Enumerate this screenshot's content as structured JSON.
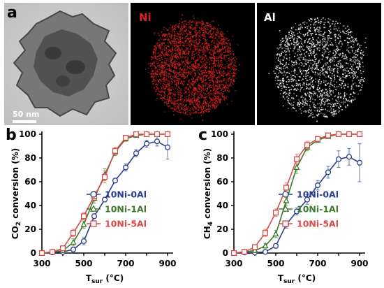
{
  "figure": {
    "panel_a_letter": "a",
    "panel_b_letter": "b",
    "panel_c_letter": "c",
    "scale_bar_label": "50 nm",
    "map_ni_label": "Ni",
    "map_al_label": "Al",
    "map_ni_color": "#d42121",
    "map_al_color": "#ffffff"
  },
  "chart_data": [
    {
      "type": "line",
      "panel": "b",
      "ylabel_main": "CO",
      "ylabel_sub": "2",
      "ylabel_rest": " conversion (%)",
      "xlabel_main": "T",
      "xlabel_sub": "sur",
      "xlabel_rest": " (°C)",
      "xlim": [
        300,
        900
      ],
      "ylim": [
        0,
        100
      ],
      "xticks": [
        "300",
        "500",
        "700",
        "900"
      ],
      "yticks": [
        "0",
        "20",
        "40",
        "60",
        "80",
        "100"
      ],
      "legend_position": "right",
      "series": [
        {
          "name": "10Ni-0Al",
          "color": "#2a3d8f",
          "marker": "circle",
          "x": [
            300,
            350,
            400,
            450,
            500,
            550,
            600,
            650,
            700,
            750,
            800,
            850,
            900
          ],
          "y": [
            0,
            0.5,
            1,
            3,
            10,
            31,
            45,
            61,
            72,
            84,
            92,
            94,
            89
          ],
          "err": [
            0,
            0,
            1,
            2,
            3,
            2,
            2,
            2,
            3,
            3,
            3,
            4,
            10
          ]
        },
        {
          "name": "10Ni-1Al",
          "color": "#3d7a2a",
          "marker": "triangle",
          "x": [
            300,
            350,
            400,
            450,
            500,
            550,
            600,
            650,
            700,
            750,
            800,
            850,
            900
          ],
          "y": [
            0,
            1,
            2,
            9,
            24,
            46,
            66,
            85,
            96,
            99,
            100,
            100,
            100
          ],
          "err": [
            0,
            0,
            1,
            3,
            3,
            4,
            5,
            3,
            2,
            1,
            0,
            0,
            0
          ]
        },
        {
          "name": "10Ni-5Al",
          "color": "#d94a4a",
          "marker": "square",
          "x": [
            300,
            350,
            400,
            450,
            500,
            550,
            600,
            650,
            700,
            750,
            800,
            850,
            900
          ],
          "y": [
            0,
            1,
            4,
            17,
            31,
            48,
            64,
            86,
            97,
            100,
            100,
            100,
            100
          ],
          "err": [
            0,
            0,
            2,
            3,
            3,
            4,
            5,
            3,
            2,
            1,
            0,
            0,
            0
          ]
        }
      ]
    },
    {
      "type": "line",
      "panel": "c",
      "ylabel_main": "CH",
      "ylabel_sub": "4",
      "ylabel_rest": " conversion (%)",
      "xlabel_main": "T",
      "xlabel_sub": "sur",
      "xlabel_rest": " (°C)",
      "xlim": [
        300,
        900
      ],
      "ylim": [
        0,
        100
      ],
      "xticks": [
        "300",
        "500",
        "700",
        "900"
      ],
      "yticks": [
        "0",
        "20",
        "40",
        "60",
        "80",
        "100"
      ],
      "legend_position": "right",
      "series": [
        {
          "name": "10Ni-0Al",
          "color": "#2a3d8f",
          "marker": "circle",
          "x": [
            300,
            350,
            400,
            450,
            500,
            550,
            600,
            650,
            700,
            750,
            800,
            850,
            900
          ],
          "y": [
            0,
            0.5,
            0.5,
            1,
            6,
            24,
            35,
            45,
            57,
            68,
            79,
            81,
            76
          ],
          "err": [
            0,
            0,
            0,
            1,
            2,
            3,
            3,
            4,
            4,
            5,
            7,
            7,
            16
          ]
        },
        {
          "name": "10Ni-1Al",
          "color": "#3d7a2a",
          "marker": "triangle",
          "x": [
            300,
            350,
            400,
            450,
            500,
            550,
            600,
            650,
            700,
            750,
            800,
            850,
            900
          ],
          "y": [
            0,
            1,
            2,
            6,
            16,
            44,
            72,
            89,
            95,
            98,
            100,
            100,
            100
          ],
          "err": [
            0,
            0,
            1,
            2,
            3,
            4,
            5,
            3,
            2,
            1,
            0,
            0,
            0
          ]
        },
        {
          "name": "10Ni-5Al",
          "color": "#d94a4a",
          "marker": "square",
          "x": [
            300,
            350,
            400,
            450,
            500,
            550,
            600,
            650,
            700,
            750,
            800,
            850,
            900
          ],
          "y": [
            0,
            1,
            5,
            17,
            34,
            55,
            79,
            91,
            96,
            99,
            100,
            100,
            100
          ],
          "err": [
            0,
            0,
            2,
            3,
            3,
            4,
            4,
            3,
            2,
            1,
            0,
            0,
            0
          ]
        }
      ]
    }
  ]
}
